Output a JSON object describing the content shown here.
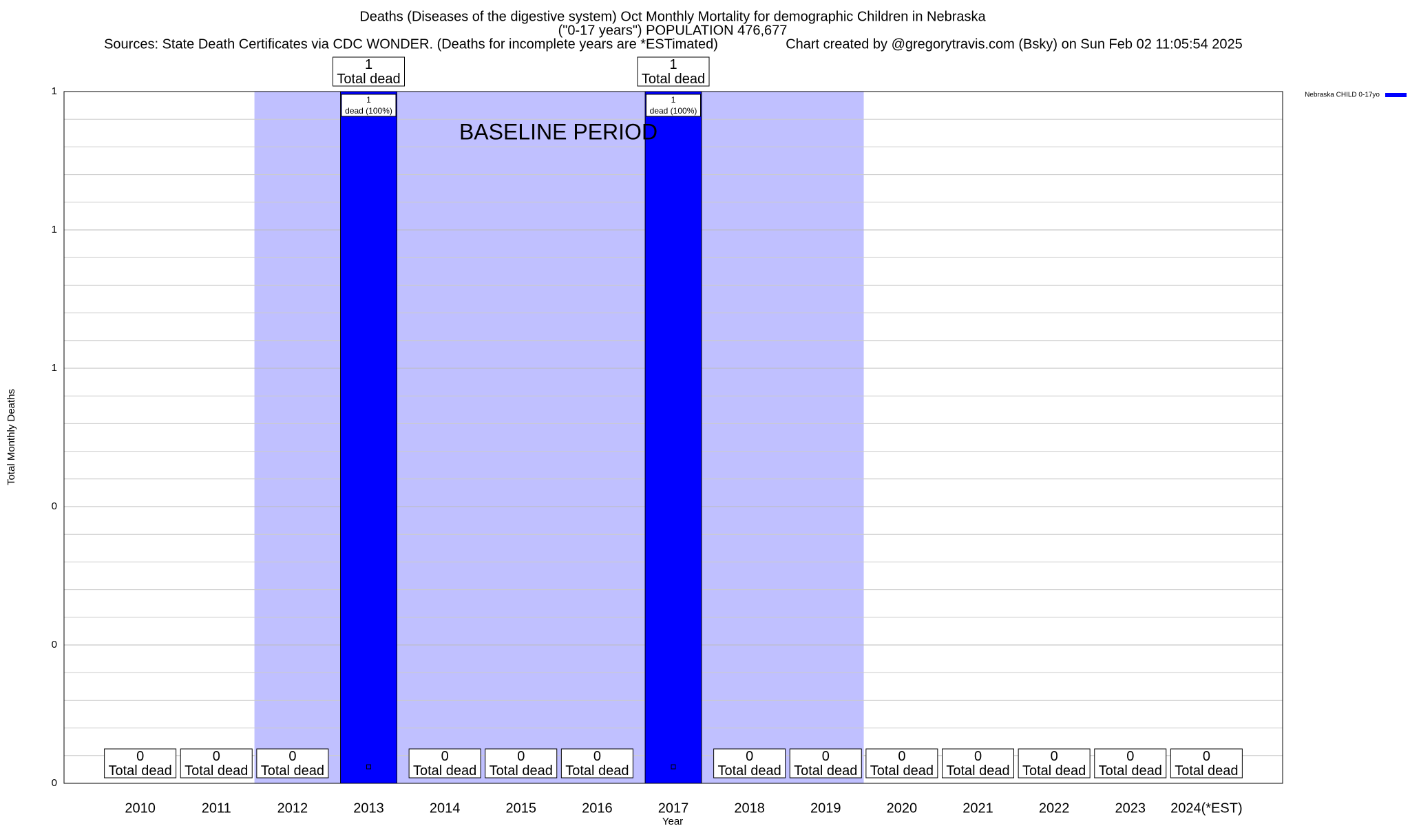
{
  "chart_data": {
    "type": "bar",
    "title": "Deaths (Diseases of the digestive system) Oct Monthly Mortality for demographic Children in Nebraska",
    "subtitle": "(\"0-17 years\") POPULATION 476,677",
    "sources": "Sources: State Death Certificates via CDC WONDER. (Deaths for incomplete years are *ESTimated)",
    "credit": "Chart created by @gregorytravis.com (Bsky) on Sun Feb 02 11:05:54 2025",
    "x_label": "Year",
    "y_label": "Total Monthly Deaths",
    "categories": [
      "2010",
      "2011",
      "2012",
      "2013",
      "2014",
      "2015",
      "2016",
      "2017",
      "2018",
      "2019",
      "2020",
      "2021",
      "2022",
      "2023",
      "2024(*EST)"
    ],
    "series": [
      {
        "name": "Nebraska CHILD 0-17yo",
        "color": "#0000ff",
        "values": [
          0,
          0,
          0,
          1,
          0,
          0,
          0,
          1,
          0,
          0,
          0,
          0,
          0,
          0,
          0
        ]
      }
    ],
    "value_labels": [
      [
        "0",
        "Total dead"
      ],
      [
        "0",
        "Total dead"
      ],
      [
        "0",
        "Total dead"
      ],
      [
        "1",
        "Total dead"
      ],
      [
        "0",
        "Total dead"
      ],
      [
        "0",
        "Total dead"
      ],
      [
        "0",
        "Total dead"
      ],
      [
        "1",
        "Total dead"
      ],
      [
        "0",
        "Total dead"
      ],
      [
        "0",
        "Total dead"
      ],
      [
        "0",
        "Total dead"
      ],
      [
        "0",
        "Total dead"
      ],
      [
        "0",
        "Total dead"
      ],
      [
        "0",
        "Total dead"
      ],
      [
        "0",
        "Total dead"
      ]
    ],
    "inner_labels": {
      "3": [
        "1",
        "dead (100%)"
      ],
      "7": [
        "1",
        "dead (100%)"
      ]
    },
    "baseline": {
      "label": "BASELINE PERIOD",
      "start": "2012",
      "end": "2019",
      "color": "#c0c0ff"
    },
    "ylim": [
      0,
      1
    ],
    "yticks": [
      0,
      {
        "value": 0.2,
        "label": "0"
      },
      {
        "value": 0.4,
        "label": "0"
      },
      {
        "value": 0.6,
        "label": "1"
      },
      {
        "value": 0.8,
        "label": "1"
      },
      {
        "value": 1,
        "label": "1"
      }
    ],
    "grid": true,
    "legend": "top-right"
  }
}
